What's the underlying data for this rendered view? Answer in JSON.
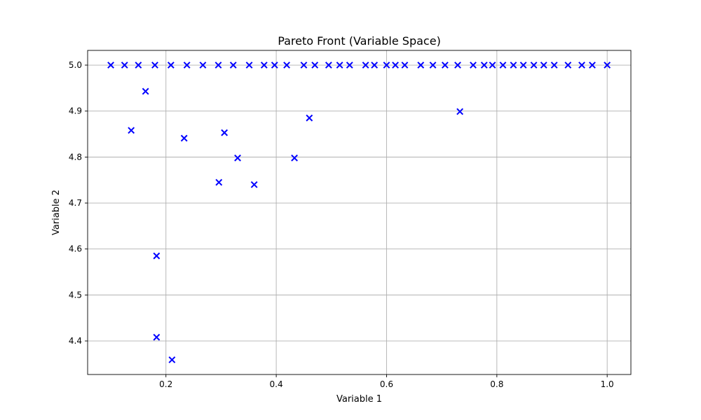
{
  "chart_data": {
    "type": "scatter",
    "title": "Pareto Front (Variable Space)",
    "xlabel": "Variable 1",
    "ylabel": "Variable 2",
    "xlim": [
      0.058,
      1.043
    ],
    "ylim": [
      4.327,
      5.032
    ],
    "xticks": [
      0.2,
      0.4,
      0.6,
      0.8,
      1.0
    ],
    "yticks": [
      4.4,
      4.5,
      4.6,
      4.7,
      4.8,
      4.9,
      5.0
    ],
    "grid": true,
    "marker": "x",
    "color": "#0000ff",
    "points": [
      [
        0.1,
        5.0
      ],
      [
        0.125,
        5.0
      ],
      [
        0.15,
        5.0
      ],
      [
        0.18,
        5.0
      ],
      [
        0.209,
        5.0
      ],
      [
        0.238,
        5.0
      ],
      [
        0.267,
        5.0
      ],
      [
        0.295,
        5.0
      ],
      [
        0.322,
        5.0
      ],
      [
        0.351,
        5.0
      ],
      [
        0.378,
        5.0
      ],
      [
        0.397,
        5.0
      ],
      [
        0.419,
        5.0
      ],
      [
        0.45,
        5.0
      ],
      [
        0.47,
        5.0
      ],
      [
        0.495,
        5.0
      ],
      [
        0.515,
        5.0
      ],
      [
        0.533,
        5.0
      ],
      [
        0.562,
        5.0
      ],
      [
        0.578,
        5.0
      ],
      [
        0.6,
        5.0
      ],
      [
        0.616,
        5.0
      ],
      [
        0.633,
        5.0
      ],
      [
        0.662,
        5.0
      ],
      [
        0.684,
        5.0
      ],
      [
        0.706,
        5.0
      ],
      [
        0.729,
        5.0
      ],
      [
        0.757,
        5.0
      ],
      [
        0.777,
        5.0
      ],
      [
        0.792,
        5.0
      ],
      [
        0.811,
        5.0
      ],
      [
        0.83,
        5.0
      ],
      [
        0.848,
        5.0
      ],
      [
        0.867,
        5.0
      ],
      [
        0.885,
        5.0
      ],
      [
        0.904,
        5.0
      ],
      [
        0.929,
        5.0
      ],
      [
        0.954,
        5.0
      ],
      [
        0.973,
        5.0
      ],
      [
        1.0,
        5.0
      ],
      [
        0.163,
        4.943
      ],
      [
        0.137,
        4.858
      ],
      [
        0.233,
        4.841
      ],
      [
        0.306,
        4.853
      ],
      [
        0.33,
        4.798
      ],
      [
        0.296,
        4.745
      ],
      [
        0.36,
        4.74
      ],
      [
        0.433,
        4.798
      ],
      [
        0.46,
        4.885
      ],
      [
        0.733,
        4.899
      ],
      [
        0.183,
        4.585
      ],
      [
        0.183,
        4.408
      ],
      [
        0.211,
        4.359
      ]
    ]
  }
}
